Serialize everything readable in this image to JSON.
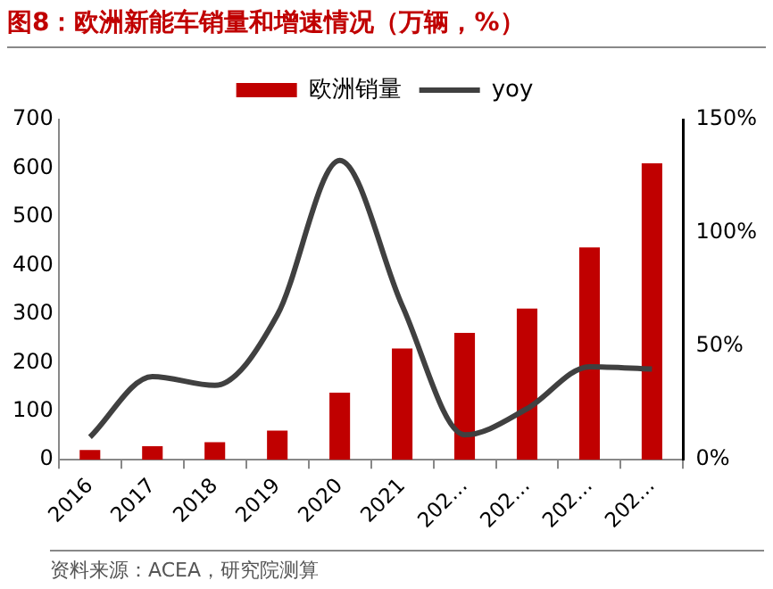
{
  "chart_data": {
    "type": "bar",
    "title": "图8：欧洲新能车销量和增速情况（万辆，%）",
    "categories": [
      "2016",
      "2017",
      "2018",
      "2019",
      "2020",
      "2021",
      "202…",
      "202…",
      "202…",
      "202…"
    ],
    "series": [
      {
        "name": "欧洲销量",
        "color": "#c00000",
        "values": [
          20,
          28,
          36,
          60,
          138,
          229,
          261,
          311,
          437,
          610
        ]
      },
      {
        "name": "yoy",
        "type": "line",
        "axis": "y2",
        "color": "#404040",
        "marker": "none",
        "values": [
          10,
          36.7,
          32.8,
          63.8,
          132,
          68,
          11,
          22.5,
          41,
          40
        ]
      }
    ],
    "ylim": [
      0,
      700
    ],
    "yticks": [
      0,
      100,
      200,
      300,
      400,
      500,
      600,
      700
    ],
    "y2lim": [
      0,
      150
    ],
    "y2ticks": [
      {
        "value": 0,
        "label": "0%"
      },
      {
        "value": 50,
        "label": "50%"
      },
      {
        "value": 100,
        "label": "100%"
      },
      {
        "value": 150,
        "label": "150%"
      }
    ],
    "grid": false,
    "legend": "top",
    "annotations": [
      "资料来源：ACEA，研究院测算"
    ]
  }
}
